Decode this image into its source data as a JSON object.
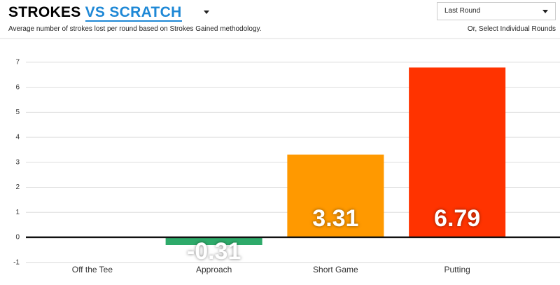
{
  "header": {
    "title": "STROKES",
    "title_selector": "VS SCRATCH",
    "subtitle": "Average number of strokes lost per round based on Strokes Gained methodology.",
    "dropdown": "Last Round",
    "hint": "Or, Select Individual Rounds"
  },
  "chart_data": {
    "type": "bar",
    "categories": [
      "Off the Tee",
      "Approach",
      "Short Game",
      "Putting"
    ],
    "values": [
      0,
      -0.31,
      3.31,
      6.79
    ],
    "value_labels": [
      null,
      "-0.31",
      "3.31",
      "6.79"
    ],
    "colors": [
      "#2eaa6a",
      "#2eaa6a",
      "#ff9900",
      "#ff3300"
    ],
    "ylim": [
      -1.15,
      7.95
    ],
    "yticks": [
      -1,
      0,
      1,
      2,
      3,
      4,
      5,
      6,
      7
    ],
    "grid": true
  }
}
